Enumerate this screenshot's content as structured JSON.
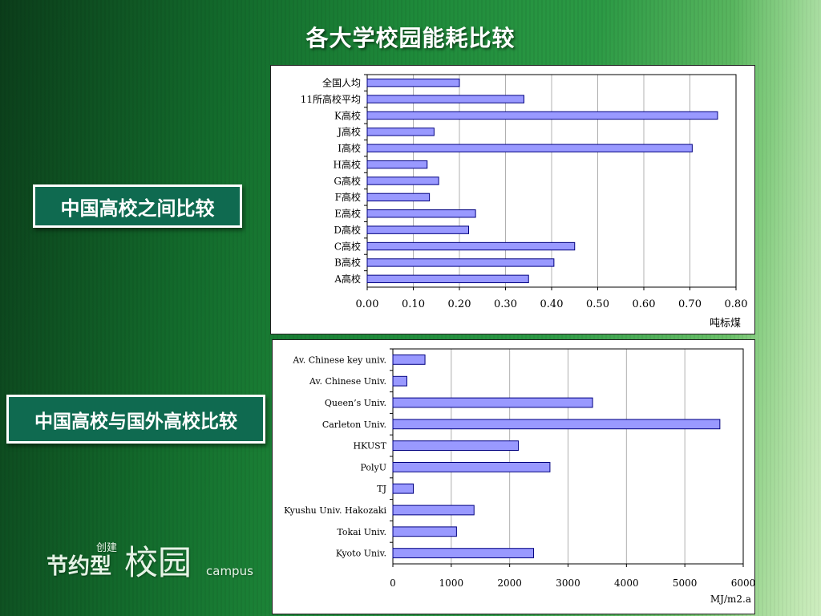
{
  "slide": {
    "title": "各大学校园能耗比较",
    "label_domestic": "中国高校之间比较",
    "label_international": "中国高校与国外高校比较"
  },
  "logo": {
    "part1": "节约型",
    "small": "创建",
    "big": "校园",
    "english": "campus"
  },
  "colors": {
    "bar_fill": "#9999ff",
    "bar_stroke": "#000080",
    "label_box_bg": "#0f6a50"
  },
  "chart_data": [
    {
      "type": "bar",
      "orientation": "horizontal",
      "categories": [
        "全国人均",
        "11所高校平均",
        "K高校",
        "J高校",
        "I高校",
        "H高校",
        "G高校",
        "F高校",
        "E高校",
        "D高校",
        "C高校",
        "B高校",
        "A高校"
      ],
      "values": [
        0.2,
        0.34,
        0.76,
        0.145,
        0.705,
        0.13,
        0.155,
        0.135,
        0.235,
        0.22,
        0.45,
        0.405,
        0.35
      ],
      "xlim": [
        0,
        0.8
      ],
      "xticks": [
        "0.00",
        "0.10",
        "0.20",
        "0.30",
        "0.40",
        "0.50",
        "0.60",
        "0.70",
        "0.80"
      ],
      "xlabel": "吨标煤",
      "grid": "vertical"
    },
    {
      "type": "bar",
      "orientation": "horizontal",
      "categories": [
        "Av. Chinese key univ.",
        "Av. Chinese Univ.",
        "Queen’s Univ.",
        "Carleton Univ.",
        "HKUST",
        "PolyU",
        "TJ",
        "Kyushu Univ. Hakozaki",
        "Tokai Univ.",
        "Kyoto Univ."
      ],
      "values": [
        550,
        240,
        3420,
        5600,
        2150,
        2690,
        350,
        1390,
        1090,
        2410
      ],
      "xlim": [
        0,
        6000
      ],
      "xticks": [
        "0",
        "1000",
        "2000",
        "3000",
        "4000",
        "5000",
        "6000"
      ],
      "xlabel": "MJ/m2.a",
      "grid": "vertical"
    }
  ]
}
